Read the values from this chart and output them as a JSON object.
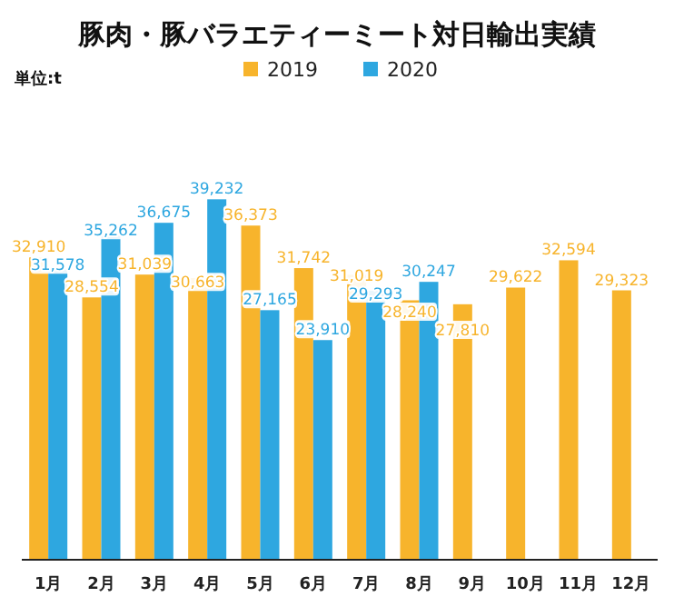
{
  "chart_data": {
    "type": "bar",
    "title": "豚肉・豚バラエティーミート対日輸出実績",
    "annotations": [
      "単位:t"
    ],
    "categories": [
      "1月",
      "2月",
      "3月",
      "4月",
      "5月",
      "6月",
      "7月",
      "8月",
      "9月",
      "10月",
      "11月",
      "12月"
    ],
    "series": [
      {
        "name": "2019",
        "color": "#f7b42c",
        "values": [
          32910,
          28554,
          31039,
          30663,
          36373,
          31742,
          31019,
          28240,
          27810,
          29622,
          32594,
          29323
        ],
        "value_labels": [
          "32,910",
          "28,554",
          "31,039",
          "30,663",
          "36,373",
          "31,742",
          "31,019",
          "28,240",
          "27,810",
          "29,622",
          "32,594",
          "29,323"
        ]
      },
      {
        "name": "2020",
        "color": "#2ea7e0",
        "values": [
          31578,
          35262,
          36675,
          39232,
          27165,
          23910,
          29293,
          30247,
          null,
          null,
          null,
          null
        ],
        "value_labels": [
          "31,578",
          "35,262",
          "36,675",
          "39,232",
          "27,165",
          "23,910",
          "29,293",
          "30,247",
          null,
          null,
          null,
          null
        ]
      }
    ],
    "legend": "top"
  }
}
